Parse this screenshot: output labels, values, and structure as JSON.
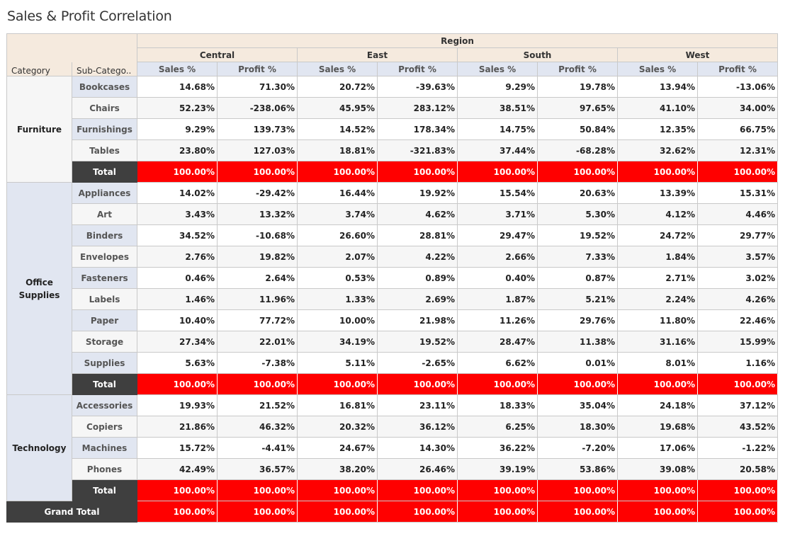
{
  "title": "Sales & Profit Correlation",
  "chart_data": {
    "type": "table",
    "title": "Sales & Profit Correlation",
    "column_group_label": "Region",
    "row_header_labels": [
      "Category",
      "Sub-Catego.."
    ],
    "regions": [
      "Central",
      "East",
      "South",
      "West"
    ],
    "measures": [
      "Sales %",
      "Profit %"
    ],
    "colors": {
      "total_fill": "#ff0000",
      "total_label_fill": "#3f3f3f",
      "header_fill": "#f5eade",
      "measure_fill": "#e1e6f1"
    },
    "categories": [
      {
        "name": "Furniture",
        "rows": [
          {
            "sub": "Bookcases",
            "values": [
              "14.68%",
              "71.30%",
              "20.72%",
              "-39.63%",
              "9.29%",
              "19.78%",
              "13.94%",
              "-13.06%"
            ]
          },
          {
            "sub": "Chairs",
            "values": [
              "52.23%",
              "-238.06%",
              "45.95%",
              "283.12%",
              "38.51%",
              "97.65%",
              "41.10%",
              "34.00%"
            ]
          },
          {
            "sub": "Furnishings",
            "values": [
              "9.29%",
              "139.73%",
              "14.52%",
              "178.34%",
              "14.75%",
              "50.84%",
              "12.35%",
              "66.75%"
            ]
          },
          {
            "sub": "Tables",
            "values": [
              "23.80%",
              "127.03%",
              "18.81%",
              "-321.83%",
              "37.44%",
              "-68.28%",
              "32.62%",
              "12.31%"
            ]
          }
        ],
        "total_label": "Total",
        "total": [
          "100.00%",
          "100.00%",
          "100.00%",
          "100.00%",
          "100.00%",
          "100.00%",
          "100.00%",
          "100.00%"
        ]
      },
      {
        "name": "Office\nSupplies",
        "rows": [
          {
            "sub": "Appliances",
            "values": [
              "14.02%",
              "-29.42%",
              "16.44%",
              "19.92%",
              "15.54%",
              "20.63%",
              "13.39%",
              "15.31%"
            ]
          },
          {
            "sub": "Art",
            "values": [
              "3.43%",
              "13.32%",
              "3.74%",
              "4.62%",
              "3.71%",
              "5.30%",
              "4.12%",
              "4.46%"
            ]
          },
          {
            "sub": "Binders",
            "values": [
              "34.52%",
              "-10.68%",
              "26.60%",
              "28.81%",
              "29.47%",
              "19.52%",
              "24.72%",
              "29.77%"
            ]
          },
          {
            "sub": "Envelopes",
            "values": [
              "2.76%",
              "19.82%",
              "2.07%",
              "4.22%",
              "2.66%",
              "7.33%",
              "1.84%",
              "3.57%"
            ]
          },
          {
            "sub": "Fasteners",
            "values": [
              "0.46%",
              "2.64%",
              "0.53%",
              "0.89%",
              "0.40%",
              "0.87%",
              "2.71%",
              "3.02%"
            ]
          },
          {
            "sub": "Labels",
            "values": [
              "1.46%",
              "11.96%",
              "1.33%",
              "2.69%",
              "1.87%",
              "5.21%",
              "2.24%",
              "4.26%"
            ]
          },
          {
            "sub": "Paper",
            "values": [
              "10.40%",
              "77.72%",
              "10.00%",
              "21.98%",
              "11.26%",
              "29.76%",
              "11.80%",
              "22.46%"
            ]
          },
          {
            "sub": "Storage",
            "values": [
              "27.34%",
              "22.01%",
              "34.19%",
              "19.52%",
              "28.47%",
              "11.38%",
              "31.16%",
              "15.99%"
            ]
          },
          {
            "sub": "Supplies",
            "values": [
              "5.63%",
              "-7.38%",
              "5.11%",
              "-2.65%",
              "6.62%",
              "0.01%",
              "8.01%",
              "1.16%"
            ]
          }
        ],
        "total_label": "Total",
        "total": [
          "100.00%",
          "100.00%",
          "100.00%",
          "100.00%",
          "100.00%",
          "100.00%",
          "100.00%",
          "100.00%"
        ]
      },
      {
        "name": "Technology",
        "rows": [
          {
            "sub": "Accessories",
            "values": [
              "19.93%",
              "21.52%",
              "16.81%",
              "23.11%",
              "18.33%",
              "35.04%",
              "24.18%",
              "37.12%"
            ]
          },
          {
            "sub": "Copiers",
            "values": [
              "21.86%",
              "46.32%",
              "20.32%",
              "36.12%",
              "6.25%",
              "18.30%",
              "19.68%",
              "43.52%"
            ]
          },
          {
            "sub": "Machines",
            "values": [
              "15.72%",
              "-4.41%",
              "24.67%",
              "14.30%",
              "36.22%",
              "-7.20%",
              "17.06%",
              "-1.22%"
            ]
          },
          {
            "sub": "Phones",
            "values": [
              "42.49%",
              "36.57%",
              "38.20%",
              "26.46%",
              "39.19%",
              "53.86%",
              "39.08%",
              "20.58%"
            ]
          }
        ],
        "total_label": "Total",
        "total": [
          "100.00%",
          "100.00%",
          "100.00%",
          "100.00%",
          "100.00%",
          "100.00%",
          "100.00%",
          "100.00%"
        ]
      }
    ],
    "grand_total_label": "Grand Total",
    "grand_total": [
      "100.00%",
      "100.00%",
      "100.00%",
      "100.00%",
      "100.00%",
      "100.00%",
      "100.00%",
      "100.00%"
    ]
  }
}
